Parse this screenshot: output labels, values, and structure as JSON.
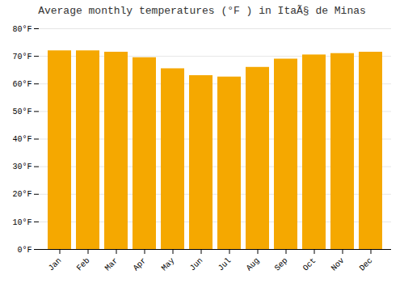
{
  "chart_data": {
    "type": "bar",
    "title": "Average monthly temperatures (°F ) in ItaÃ§ de Minas",
    "categories": [
      "Jan",
      "Feb",
      "Mar",
      "Apr",
      "May",
      "Jun",
      "Jul",
      "Aug",
      "Sep",
      "Oct",
      "Nov",
      "Dec"
    ],
    "values": [
      72,
      72,
      71.5,
      69.5,
      65.5,
      63,
      62.5,
      66,
      69,
      70.5,
      71,
      71.5
    ],
    "color": "#F5A800",
    "ylim": [
      0,
      80
    ],
    "yticks": [
      {
        "value": 0,
        "label": "0°F"
      },
      {
        "value": 10,
        "label": "10°F"
      },
      {
        "value": 20,
        "label": "20°F"
      },
      {
        "value": 30,
        "label": "30°F"
      },
      {
        "value": 40,
        "label": "40°F"
      },
      {
        "value": 50,
        "label": "50°F"
      },
      {
        "value": 60,
        "label": "60°F"
      },
      {
        "value": 70,
        "label": "70°F"
      },
      {
        "value": 80,
        "label": "80°F"
      }
    ],
    "grid": true
  }
}
